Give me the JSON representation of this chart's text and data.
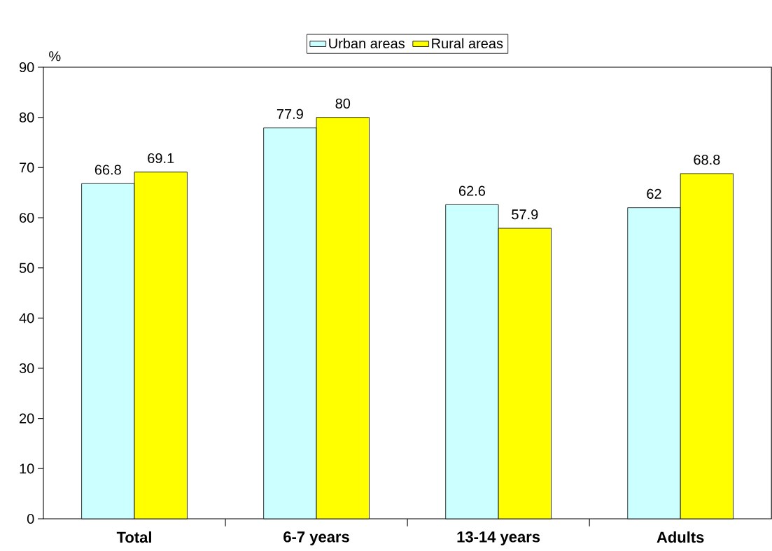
{
  "chart_data": {
    "type": "bar",
    "ylabel": "%",
    "categories": [
      "Total",
      "6-7 years",
      "13-14 years",
      "Adults"
    ],
    "series": [
      {
        "name": "Urban areas",
        "color": "#ccffff",
        "values": [
          66.8,
          77.9,
          62.6,
          62
        ]
      },
      {
        "name": "Rural areas",
        "color": "#ffff00",
        "values": [
          69.1,
          80,
          57.9,
          68.8
        ]
      }
    ],
    "ylim": [
      0,
      90
    ],
    "yticks": [
      0,
      10,
      20,
      30,
      40,
      50,
      60,
      70,
      80,
      90
    ],
    "data_labels": true,
    "legend": "top",
    "grid": false
  }
}
